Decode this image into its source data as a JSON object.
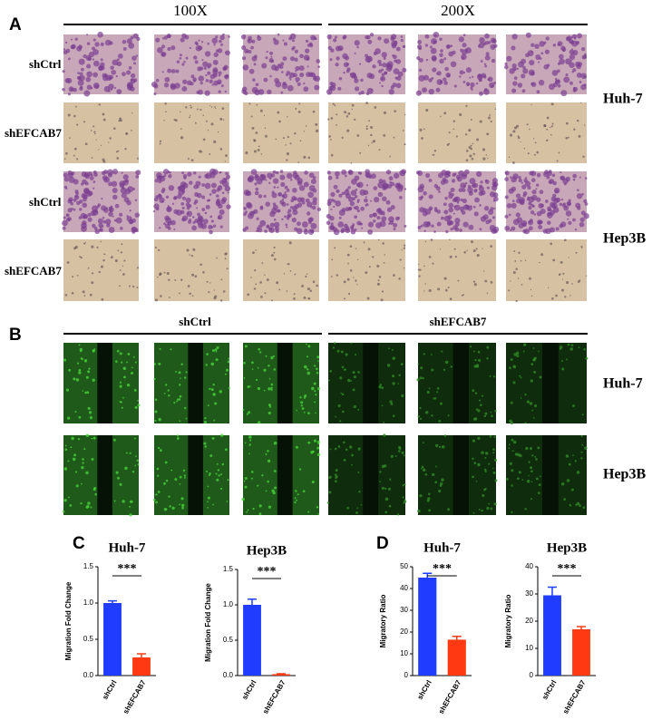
{
  "panel_a": {
    "label": "A",
    "columns": [
      "100X",
      "200X"
    ],
    "rows": [
      "shCtrl",
      "shEFCAB7",
      "shCtrl",
      "shEFCAB7"
    ],
    "groups": [
      "Huh-7",
      "Hep3B"
    ]
  },
  "panel_b": {
    "label": "B",
    "columns": [
      "shCtrl",
      "shEFCAB7"
    ],
    "groups": [
      "Huh-7",
      "Hep3B"
    ]
  },
  "panel_c": {
    "label": "C"
  },
  "panel_d": {
    "label": "D"
  },
  "chart_data": [
    {
      "type": "bar",
      "title": "Huh-7",
      "ylabel": "Migration Fold Change",
      "categories": [
        "shCtrl",
        "shEFCAB7"
      ],
      "values": [
        1.0,
        0.25
      ],
      "errors": [
        0.03,
        0.05
      ],
      "colors": [
        "#1f3cff",
        "#ff3a12"
      ],
      "ylim": [
        0,
        1.5
      ],
      "yticks": [
        {
          "value": 0,
          "label": "0.0"
        },
        0.5,
        {
          "value": 1,
          "label": "1.0"
        },
        1.5
      ],
      "annotation": "***"
    },
    {
      "type": "bar",
      "title": "Hep3B",
      "ylabel": "Migration Fold Change",
      "categories": [
        "shCtrl",
        "shEFCAB7"
      ],
      "values": [
        1.0,
        0.02
      ],
      "errors": [
        0.08,
        0.005
      ],
      "colors": [
        "#1f3cff",
        "#ff3a12"
      ],
      "ylim": [
        0,
        1.5
      ],
      "yticks": [
        {
          "value": 0,
          "label": "0.0"
        },
        0.5,
        {
          "value": 1,
          "label": "1.0"
        },
        1.5
      ],
      "annotation": "***"
    },
    {
      "type": "bar",
      "title": "Huh-7",
      "ylabel": "Migratory Ratio",
      "categories": [
        "shCtrl",
        "shEFCAB7"
      ],
      "values": [
        45,
        16.5
      ],
      "errors": [
        2,
        1.5
      ],
      "colors": [
        "#1f3cff",
        "#ff3a12"
      ],
      "ylim": [
        0,
        50
      ],
      "yticks": [
        0,
        10,
        20,
        30,
        40,
        50
      ],
      "annotation": "***"
    },
    {
      "type": "bar",
      "title": "Hep3B",
      "ylabel": "Migratory Ratio",
      "categories": [
        "shCtrl",
        "shEFCAB7"
      ],
      "values": [
        29.5,
        17
      ],
      "errors": [
        3,
        1
      ],
      "colors": [
        "#1f3cff",
        "#ff3a12"
      ],
      "ylim": [
        0,
        40
      ],
      "yticks": [
        0,
        10,
        20,
        30,
        40
      ],
      "annotation": "***"
    }
  ]
}
